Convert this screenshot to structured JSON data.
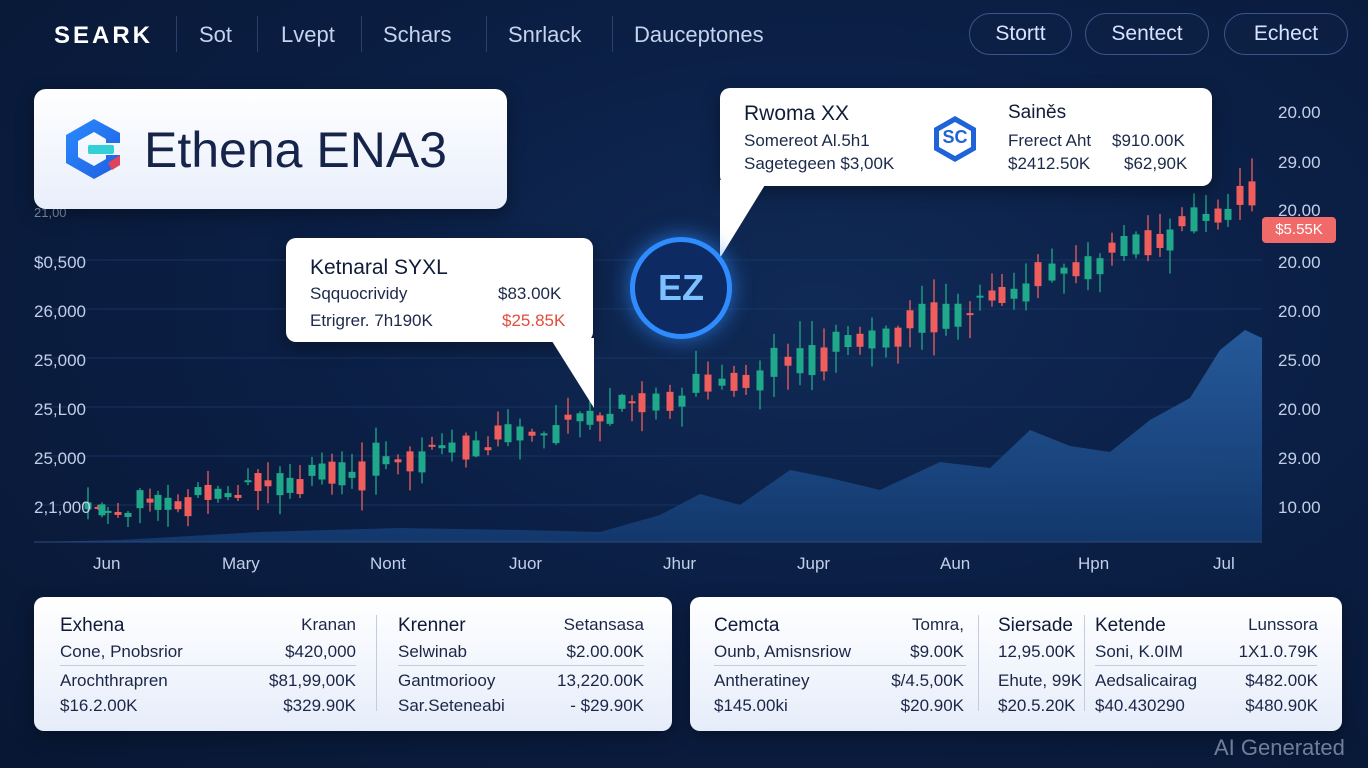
{
  "nav": {
    "brand": "SEARK",
    "items": [
      "Sot",
      "Lvept",
      "Schars",
      "Snrlack",
      "Dauceptones"
    ],
    "buttons": [
      "Stortt",
      "Sentect",
      "Echect"
    ]
  },
  "title_card": {
    "title": "Ethena ENA3"
  },
  "callout_left": {
    "title": "Ketnaral SYXL",
    "rows": [
      {
        "label": "Sqquocrividy",
        "value": "$83.00K"
      },
      {
        "label": "Etrigrer. 7h190K",
        "value": "$25.85K"
      }
    ]
  },
  "callout_right": {
    "title": "Rwoma XX",
    "badge": "SC",
    "rows_left": [
      "Somereot Al.5h1",
      "Sagetegeen $3,00K"
    ],
    "col_title": "Sainěs",
    "rows_right": [
      {
        "label": "Frerect Aht",
        "value": "$910.00K"
      },
      {
        "label": "$2412.50K",
        "value": "$62,90K"
      }
    ]
  },
  "badge": {
    "text": "EZ"
  },
  "price_tag": "$5.55K",
  "colors": {
    "up": "#1fa88a",
    "down": "#f05d5d",
    "ma_fast": "#26b59b",
    "ma_slow": "#ef5a5a",
    "area": "#1e4f8f"
  },
  "chart_data": {
    "type": "line",
    "x_labels": [
      "Jun",
      "Mary",
      "Nont",
      "Juor",
      "Jhur",
      "Jupr",
      "Aun",
      "Hpn",
      "Jul"
    ],
    "y_left_labels": [
      "21,00",
      "$0,500",
      "26,000",
      "25,000",
      "25,L00",
      "25,000",
      "2,1,000"
    ],
    "y_right_labels": [
      "20.00",
      "29.00",
      "20.00",
      "20.00",
      "20.00",
      "25.00",
      "20.00",
      "29.00",
      "10.00"
    ],
    "candles": [
      [
        88,
        7,
        15,
        10
      ],
      [
        98,
        1,
        2,
        2
      ],
      [
        102,
        11,
        2,
        2
      ],
      [
        108,
        2,
        4,
        11
      ],
      [
        118,
        3,
        9,
        3
      ],
      [
        128,
        4,
        2,
        10
      ],
      [
        140,
        18,
        2,
        15
      ],
      [
        150,
        4,
        10,
        9
      ],
      [
        158,
        15,
        4,
        11
      ],
      [
        168,
        12,
        13,
        17
      ],
      [
        178,
        8,
        7,
        3
      ],
      [
        188,
        19,
        8,
        10
      ],
      [
        198,
        8,
        5,
        3
      ],
      [
        208,
        15,
        14,
        14
      ],
      [
        218,
        10,
        3,
        4
      ],
      [
        228,
        4,
        7,
        3
      ],
      [
        238,
        3,
        10,
        3
      ],
      [
        248,
        1,
        12,
        4
      ],
      [
        258,
        18,
        4,
        19
      ],
      [
        268,
        6,
        18,
        17
      ],
      [
        280,
        22,
        7,
        19
      ],
      [
        290,
        15,
        14,
        6
      ],
      [
        300,
        15,
        14,
        4
      ],
      [
        312,
        11,
        8,
        10
      ],
      [
        322,
        16,
        11,
        5
      ],
      [
        332,
        22,
        8,
        11
      ],
      [
        342,
        23,
        11,
        9
      ],
      [
        352,
        6,
        18,
        11
      ],
      [
        362,
        29,
        19,
        20
      ],
      [
        376,
        33,
        15,
        19
      ],
      [
        386,
        8,
        15,
        5
      ],
      [
        398,
        3,
        5,
        12
      ],
      [
        410,
        20,
        5,
        19
      ],
      [
        422,
        21,
        14,
        11
      ],
      [
        432,
        2,
        8,
        3
      ],
      [
        442,
        3,
        12,
        6
      ],
      [
        452,
        10,
        13,
        9
      ],
      [
        466,
        24,
        3,
        8
      ],
      [
        476,
        16,
        9,
        1
      ],
      [
        488,
        3,
        11,
        5
      ],
      [
        498,
        14,
        14,
        7
      ],
      [
        508,
        18,
        15,
        4
      ],
      [
        520,
        14,
        8,
        19
      ],
      [
        532,
        4,
        3,
        6
      ],
      [
        544,
        1,
        2,
        14
      ],
      [
        556,
        18,
        20,
        2
      ],
      [
        568,
        5,
        17,
        14
      ],
      [
        580,
        8,
        2,
        16
      ],
      [
        590,
        14,
        10,
        5
      ],
      [
        600,
        6,
        3,
        20
      ],
      [
        610,
        10,
        26,
        2
      ],
      [
        622,
        14,
        1,
        3
      ],
      [
        632,
        2,
        6,
        18
      ],
      [
        642,
        19,
        12,
        19
      ],
      [
        656,
        17,
        6,
        9
      ],
      [
        670,
        19,
        7,
        8
      ],
      [
        682,
        11,
        8,
        20
      ],
      [
        696,
        19,
        23,
        4
      ],
      [
        708,
        17,
        13,
        8
      ],
      [
        722,
        7,
        14,
        4
      ],
      [
        734,
        18,
        7,
        6
      ],
      [
        746,
        13,
        10,
        7
      ],
      [
        760,
        20,
        10,
        19
      ],
      [
        774,
        29,
        14,
        20
      ],
      [
        788,
        9,
        13,
        24
      ],
      [
        800,
        25,
        27,
        12
      ],
      [
        812,
        30,
        24,
        15
      ],
      [
        824,
        24,
        19,
        9
      ],
      [
        836,
        20,
        7,
        21
      ],
      [
        848,
        12,
        9,
        8
      ],
      [
        860,
        13,
        7,
        8
      ],
      [
        872,
        18,
        13,
        18
      ],
      [
        886,
        19,
        3,
        10
      ],
      [
        898,
        19,
        2,
        17
      ],
      [
        910,
        18,
        10,
        19
      ],
      [
        922,
        29,
        18,
        17
      ],
      [
        934,
        30,
        23,
        23
      ],
      [
        946,
        25,
        20,
        7
      ],
      [
        958,
        23,
        10,
        13
      ],
      [
        970,
        2,
        12,
        23
      ],
      [
        980,
        2,
        11,
        13
      ],
      [
        992,
        10,
        17,
        6
      ],
      [
        1002,
        16,
        13,
        3
      ],
      [
        1014,
        10,
        16,
        11
      ],
      [
        1026,
        18,
        20,
        9
      ],
      [
        1038,
        24,
        8,
        12
      ],
      [
        1052,
        17,
        15,
        2
      ],
      [
        1064,
        6,
        4,
        20
      ],
      [
        1076,
        14,
        17,
        7
      ],
      [
        1088,
        23,
        14,
        11
      ],
      [
        1100,
        16,
        5,
        18
      ],
      [
        1112,
        10,
        10,
        13
      ],
      [
        1124,
        20,
        11,
        5
      ],
      [
        1136,
        20,
        3,
        4
      ],
      [
        1148,
        25,
        15,
        6
      ],
      [
        1160,
        14,
        20,
        9
      ],
      [
        1170,
        21,
        11,
        23
      ],
      [
        1182,
        10,
        9,
        5
      ],
      [
        1194,
        24,
        14,
        2
      ],
      [
        1206,
        7,
        19,
        11
      ],
      [
        1218,
        14,
        9,
        7
      ],
      [
        1228,
        11,
        15,
        7
      ],
      [
        1240,
        19,
        18,
        15
      ],
      [
        1252,
        24,
        23,
        6
      ]
    ]
  },
  "panels": {
    "left": {
      "headers": [
        {
          "label": "Exhena",
          "value": "Kranan"
        },
        {
          "label": "Krenner",
          "value": "Setansasa"
        }
      ],
      "rows_col1": [
        {
          "label": "Cone, Pnobsrior",
          "value": "$420,000"
        },
        {
          "label": "Arochthrapren",
          "value": "$81,99,00K"
        },
        {
          "label": "$16.2.00K",
          "value": "$329.90K"
        }
      ],
      "rows_col2": [
        {
          "label": "Selwinab",
          "value": "$2.00.00K"
        },
        {
          "label": "Gantmoriooy",
          "value": "13,220.00K"
        },
        {
          "label": "Sar.Seteneabi",
          "value": "- $29.90K"
        }
      ]
    },
    "right": {
      "headers": [
        {
          "label": "Cemcta",
          "value": "Tomra,"
        },
        {
          "label": "Siersade",
          "value": ""
        },
        {
          "label": "Ketende",
          "value": "Lunssora"
        }
      ],
      "rows_col1": [
        {
          "label": "Ounb, Amisnsriow",
          "value": "$9.00K"
        },
        {
          "label": "Antheratiney",
          "value": "$/4.5,00K"
        },
        {
          "label": "$145.00ki",
          "value": "$20.90K"
        }
      ],
      "rows_col2": [
        "12,95.00K",
        "Ehute, 99K",
        "$20.5.20K"
      ],
      "rows_col3": [
        {
          "label": "Soni, K.0IM",
          "value": "1X1.0.79K"
        },
        {
          "label": "Aedsalicairag",
          "value": "$482.00K"
        },
        {
          "label": "$40.430290",
          "value": "$480.90K"
        }
      ]
    }
  },
  "watermark": "AI Generated"
}
